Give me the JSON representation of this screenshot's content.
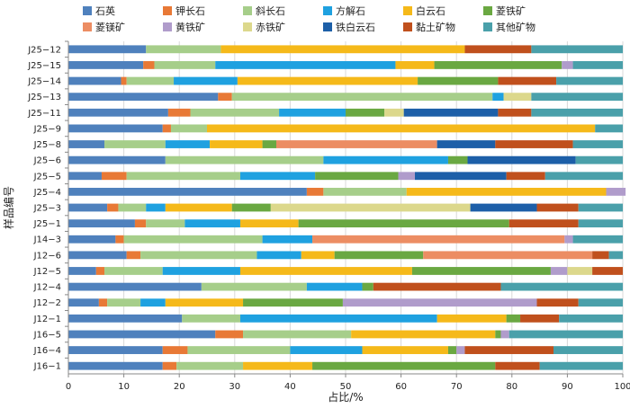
{
  "chart_data": {
    "type": "bar",
    "orientation": "horizontal",
    "stacked": true,
    "xlabel": "占比/%",
    "ylabel": "样品编号",
    "xlim": [
      0,
      100
    ],
    "xticks": [
      0,
      10,
      20,
      30,
      40,
      50,
      60,
      70,
      80,
      90,
      100
    ],
    "legend_position": "top",
    "categories": [
      "J25−12",
      "J25−15",
      "J25−14",
      "J25−13",
      "J25−11",
      "J25−9",
      "J25−8",
      "J25−6",
      "J25−5",
      "J25−4",
      "J25−3",
      "J25−1",
      "J14−3",
      "J12−6",
      "J12−5",
      "J12−4",
      "J12−2",
      "J12−1",
      "J16−5",
      "J16−4",
      "J16−1"
    ],
    "series": [
      {
        "name": "石英",
        "color": "#4f81bd",
        "values": [
          14,
          13.5,
          9.5,
          27,
          18,
          17,
          6.5,
          17.5,
          6,
          43,
          7,
          12,
          8.5,
          10.5,
          5,
          24,
          5.5,
          20.5,
          26.5,
          17,
          17
        ]
      },
      {
        "name": "钾长石",
        "color": "#e87936",
        "values": [
          0,
          2,
          1,
          2.5,
          4,
          1.5,
          0,
          0,
          4.5,
          3,
          2,
          2,
          1.5,
          2.5,
          1.5,
          0,
          1.5,
          0,
          5,
          4.5,
          2.5
        ]
      },
      {
        "name": "斜长石",
        "color": "#a6ce8a",
        "values": [
          13.5,
          11,
          8.5,
          47,
          16,
          6.5,
          11,
          28.5,
          20.5,
          15,
          5,
          7,
          25,
          21,
          10.5,
          19,
          6,
          10.5,
          19.5,
          18.5,
          12
        ]
      },
      {
        "name": "方解石",
        "color": "#1fa1e0",
        "values": [
          0,
          32.5,
          11.5,
          2,
          12,
          0,
          8,
          22.5,
          13.5,
          0,
          3.5,
          10,
          9,
          8,
          14,
          10,
          4.5,
          35.5,
          0,
          13,
          0
        ]
      },
      {
        "name": "白云石",
        "color": "#f5b91a",
        "values": [
          44,
          7,
          32.5,
          0,
          0,
          70,
          9.5,
          0,
          0,
          36,
          12,
          10.5,
          0,
          6,
          31,
          0,
          14,
          12.5,
          26,
          15.5,
          12.5
        ]
      },
      {
        "name": "菱铁矿",
        "color": "#6aa842",
        "values": [
          0,
          23,
          14.5,
          0,
          7,
          0,
          2.5,
          3.5,
          15,
          0,
          7,
          38,
          0,
          16,
          25,
          2,
          18,
          2.5,
          1,
          1.5,
          33
        ]
      },
      {
        "name": "菱镁矿",
        "color": "#ec8d63",
        "values": [
          0,
          0,
          0,
          0,
          0,
          0,
          29,
          0,
          0,
          0,
          0,
          0,
          45.5,
          30.5,
          0,
          0,
          0,
          0,
          0,
          0,
          0
        ]
      },
      {
        "name": "黄铁矿",
        "color": "#b09ccb",
        "values": [
          0,
          2,
          0,
          0,
          0,
          0,
          0,
          0,
          3,
          3.5,
          0,
          0,
          1.5,
          0,
          3,
          0,
          35,
          0,
          1.5,
          1.5,
          0
        ]
      },
      {
        "name": "赤铁矿",
        "color": "#dcd88c",
        "values": [
          0,
          0,
          0,
          5,
          3.5,
          0,
          0,
          0,
          0,
          0,
          36,
          0,
          0,
          0,
          4.5,
          0,
          0,
          0,
          0,
          0,
          0
        ]
      },
      {
        "name": "铁白云石",
        "color": "#1d5fa8",
        "values": [
          0,
          0,
          0,
          0,
          17,
          0,
          10.5,
          19.5,
          16.5,
          0,
          12,
          0,
          0,
          0,
          0,
          0,
          0,
          0,
          0,
          0,
          0
        ]
      },
      {
        "name": "黏土矿物",
        "color": "#c0501d",
        "values": [
          12,
          0,
          10.5,
          0,
          6,
          0,
          14,
          0,
          7,
          0,
          7.5,
          12.5,
          0,
          3,
          5.5,
          23,
          7.5,
          7,
          0,
          16,
          8
        ]
      },
      {
        "name": "其他矿物",
        "color": "#4aa0aa",
        "values": [
          16.5,
          9,
          12,
          16.5,
          16.5,
          5,
          9,
          8.5,
          14,
          0,
          8,
          8,
          9,
          2.5,
          0,
          22,
          8,
          11.5,
          20.5,
          12.5,
          15
        ]
      }
    ]
  }
}
